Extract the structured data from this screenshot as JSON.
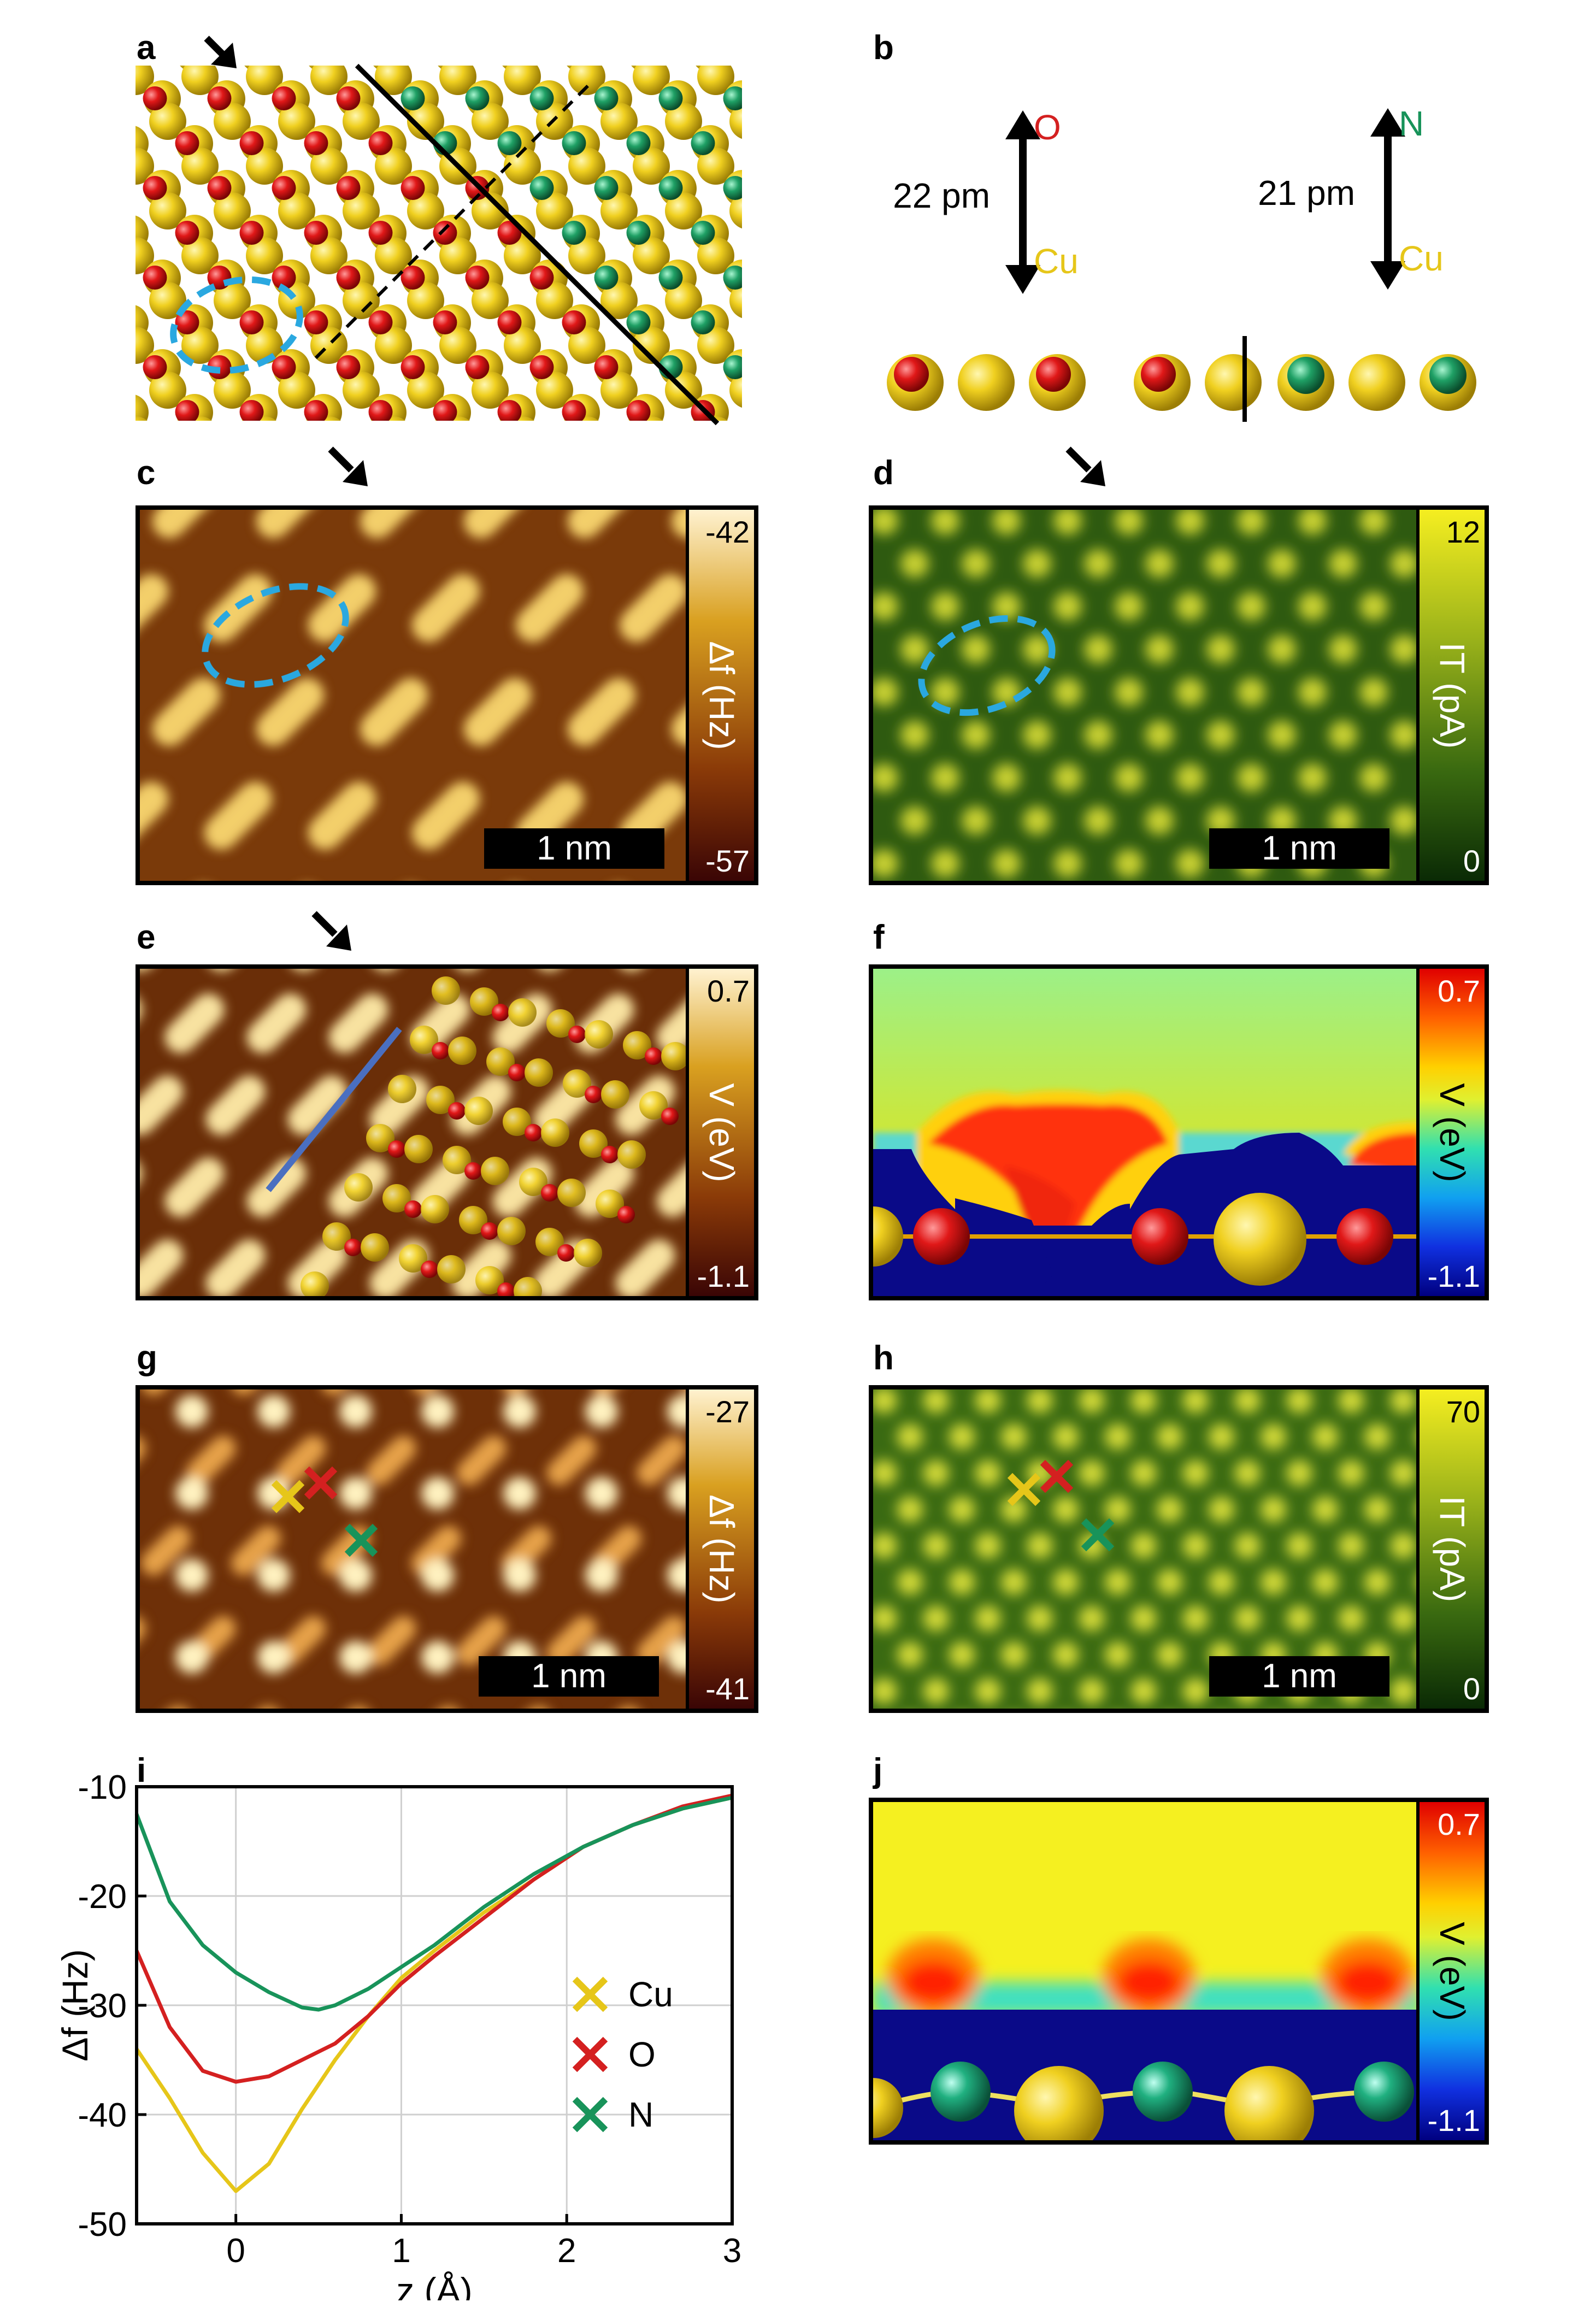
{
  "panels": {
    "a": "a",
    "b": "b",
    "c": "c",
    "d": "d",
    "e": "e",
    "f": "f",
    "g": "g",
    "h": "h",
    "i": "i",
    "j": "j"
  },
  "panel_b": {
    "left_distance": "22 pm",
    "left_top": "O",
    "left_bottom": "Cu",
    "right_distance": "21 pm",
    "right_top": "N",
    "right_bottom": "Cu"
  },
  "panel_c": {
    "cbar_top": "-42",
    "cbar_bottom": "-57",
    "cbar_label": "Δf (Hz)",
    "scalebar": "1 nm"
  },
  "panel_d": {
    "cbar_top": "12",
    "cbar_bottom": "0",
    "cbar_label": "IT (pA)",
    "scalebar": "1 nm"
  },
  "panel_e": {
    "cbar_top": "0.7",
    "cbar_bottom": "-1.1",
    "cbar_label": "V (eV)"
  },
  "panel_f": {
    "cbar_top": "0.7",
    "cbar_bottom": "-1.1",
    "cbar_label": "V (eV)"
  },
  "panel_g": {
    "cbar_top": "-27",
    "cbar_bottom": "-41",
    "cbar_label": "Δf (Hz)",
    "scalebar": "1 nm"
  },
  "panel_h": {
    "cbar_top": "70",
    "cbar_bottom": "0",
    "cbar_label": "IT (pA)",
    "scalebar": "1 nm"
  },
  "panel_j": {
    "cbar_top": "0.7",
    "cbar_bottom": "-1.1",
    "cbar_label": "V (eV)"
  },
  "colors": {
    "cu": "#e6c619",
    "o": "#d42020",
    "n": "#18935a",
    "outline_blue": "#2aa8e0",
    "line_blue": "#4a6fc0"
  },
  "chart_data": {
    "type": "line",
    "xlabel": "z (Å)",
    "ylabel": "Δf (Hz)",
    "xlim": [
      -0.6,
      3
    ],
    "ylim": [
      -50,
      -10
    ],
    "xticks": [
      0,
      1,
      2,
      3
    ],
    "yticks": [
      -10,
      -20,
      -30,
      -40,
      -50
    ],
    "grid": true,
    "legend_position": "right",
    "series": [
      {
        "name": "Cu",
        "color": "#e6c619",
        "x": [
          -0.6,
          -0.4,
          -0.2,
          0,
          0.2,
          0.4,
          0.6,
          0.8,
          1.0,
          1.2,
          1.5,
          1.8,
          2.1,
          2.4,
          2.7,
          3.0
        ],
        "y": [
          -34,
          -38.5,
          -43.5,
          -47,
          -44.5,
          -39.5,
          -35,
          -31,
          -27.5,
          -25,
          -21.5,
          -18.5,
          -15.5,
          -13.5,
          -12,
          -11
        ]
      },
      {
        "name": "O",
        "color": "#d42020",
        "x": [
          -0.6,
          -0.4,
          -0.2,
          0,
          0.2,
          0.4,
          0.6,
          0.8,
          1.0,
          1.2,
          1.5,
          1.8,
          2.1,
          2.4,
          2.7,
          3.0
        ],
        "y": [
          -25,
          -32,
          -36,
          -37,
          -36.5,
          -35,
          -33.5,
          -31,
          -28,
          -25.5,
          -22,
          -18.5,
          -15.5,
          -13.5,
          -11.8,
          -10.8
        ]
      },
      {
        "name": "N",
        "color": "#18935a",
        "x": [
          -0.6,
          -0.4,
          -0.2,
          0,
          0.2,
          0.4,
          0.5,
          0.6,
          0.8,
          1.0,
          1.2,
          1.5,
          1.8,
          2.1,
          2.4,
          2.7,
          3.0
        ],
        "y": [
          -12.5,
          -20.5,
          -24.5,
          -27,
          -28.8,
          -30.2,
          -30.4,
          -30,
          -28.5,
          -26.5,
          -24.5,
          -21,
          -18,
          -15.5,
          -13.5,
          -12,
          -11
        ]
      }
    ]
  }
}
